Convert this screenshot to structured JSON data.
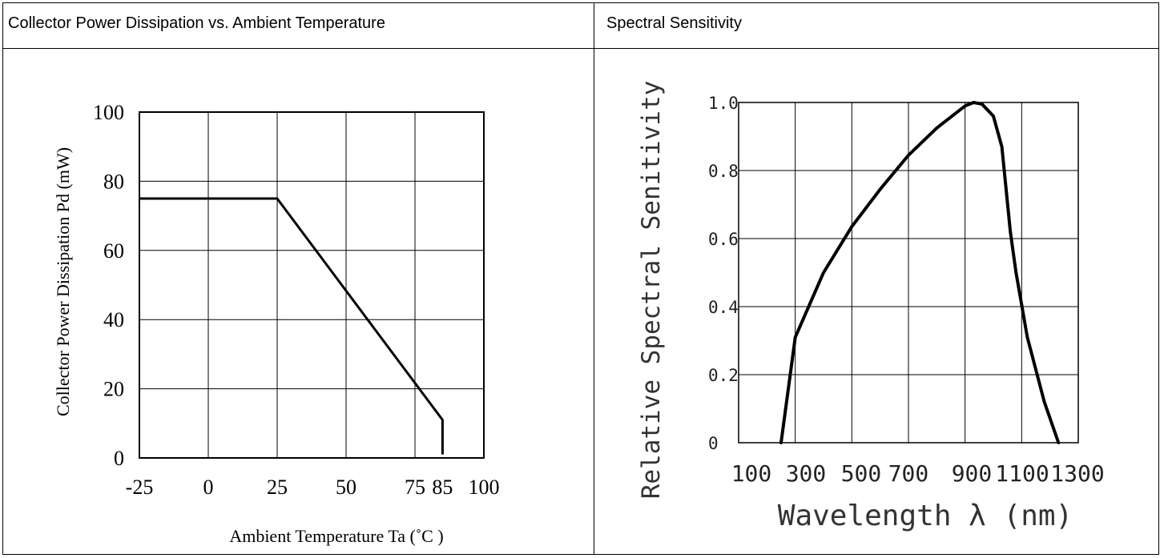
{
  "headers": {
    "left": "Collector Power Dissipation vs. Ambient Temperature",
    "right": "Spectral Sensitivity"
  },
  "chart_data": [
    {
      "type": "line",
      "title": "Collector Power Dissipation vs. Ambient Temperature",
      "xlabel": "Ambient Temperature Ta (˚C   )",
      "ylabel": "Collector Power Dissipation Pd (mW)",
      "xlim": [
        -25,
        100
      ],
      "ylim": [
        0,
        100
      ],
      "x_ticks": [
        -25,
        0,
        25,
        50,
        75,
        85,
        100
      ],
      "x_tick_labels": [
        "-25",
        "0",
        "25",
        "50",
        "75",
        "85",
        "100"
      ],
      "y_ticks": [
        0,
        20,
        40,
        60,
        80,
        100
      ],
      "y_tick_labels": [
        "0",
        "20",
        "40",
        "60",
        "80",
        "100"
      ],
      "grid": true,
      "series": [
        {
          "x": [
            -25,
            25,
            85,
            85
          ],
          "y": [
            75,
            75,
            11,
            1
          ]
        }
      ]
    },
    {
      "type": "line",
      "title": "Spectral Sensitivity",
      "xlabel": "Wavelength     λ  (nm)",
      "ylabel": "Relative  Spectral  Senitivity",
      "xlim": [
        100,
        1300
      ],
      "ylim": [
        0,
        1.0
      ],
      "x_ticks": [
        100,
        300,
        500,
        700,
        900,
        1100,
        1300
      ],
      "x_tick_labels": [
        "100",
        "300",
        "500",
        "700",
        "900",
        "1100",
        "1300"
      ],
      "y_ticks": [
        0,
        0.2,
        0.4,
        0.6,
        0.8,
        1.0
      ],
      "y_tick_labels": [
        "0",
        "0.2",
        "0.4",
        "0.6",
        "0.8",
        "1.0"
      ],
      "grid": true,
      "series": [
        {
          "x": [
            250,
            300,
            400,
            500,
            600,
            700,
            800,
            900,
            930,
            960,
            1000,
            1030,
            1060,
            1080,
            1120,
            1180,
            1230
          ],
          "y": [
            0,
            0.31,
            0.5,
            0.635,
            0.745,
            0.845,
            0.925,
            0.99,
            1.0,
            0.995,
            0.96,
            0.87,
            0.62,
            0.5,
            0.31,
            0.12,
            0
          ]
        }
      ]
    }
  ]
}
